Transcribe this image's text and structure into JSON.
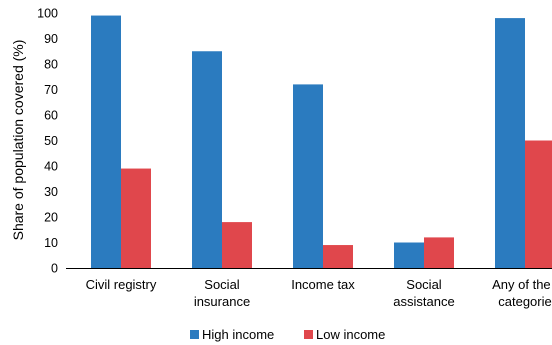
{
  "chart_data": {
    "type": "bar",
    "title": "",
    "xlabel": "",
    "ylabel": "Share of population covered (%)",
    "ylim": [
      0,
      100
    ],
    "yticks": [
      "0",
      "10",
      "20",
      "30",
      "40",
      "50",
      "60",
      "70",
      "80",
      "90",
      "100"
    ],
    "grid": false,
    "legend_position": "bottom",
    "categories": [
      [
        "Civil registry"
      ],
      [
        "Social",
        "insurance"
      ],
      [
        "Income tax"
      ],
      [
        "Social",
        "assistance"
      ],
      [
        "Any of the f",
        "categorie"
      ]
    ],
    "series": [
      {
        "name": "High income",
        "color": "#2b7bbf",
        "values": [
          99,
          85,
          72,
          10,
          98
        ]
      },
      {
        "name": "Low income",
        "color": "#e0474c",
        "values": [
          39,
          18,
          9,
          12,
          50
        ]
      }
    ]
  }
}
